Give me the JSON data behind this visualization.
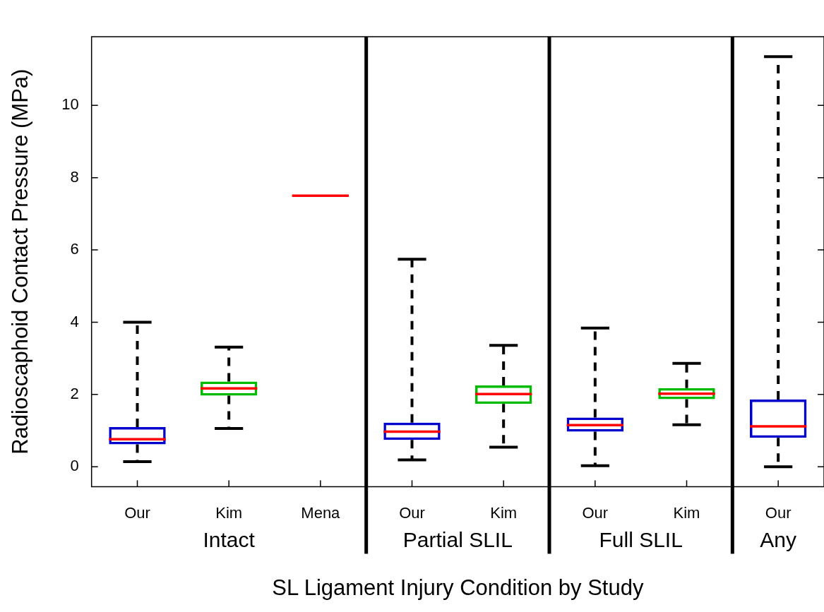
{
  "chart_data": {
    "type": "box",
    "xlabel": "SL Ligament Injury Condition by Study",
    "ylabel": "Radioscaphoid Contact Pressure (MPa)",
    "categories": [
      "Our",
      "Kim",
      "Mena",
      "Our",
      "Kim",
      "Our",
      "Kim",
      "Our"
    ],
    "boxes": [
      {
        "low": 0.14,
        "q1": 0.62,
        "median": 0.76,
        "q3": 1.1,
        "high": 4.0
      },
      {
        "low": 1.06,
        "q1": 1.97,
        "median": 2.17,
        "q3": 2.36,
        "high": 3.31
      },
      {
        "low": 7.5,
        "q1": 7.5,
        "median": 7.5,
        "q3": 7.5,
        "high": 7.5
      },
      {
        "low": 0.19,
        "q1": 0.74,
        "median": 0.97,
        "q3": 1.22,
        "high": 5.74
      },
      {
        "low": 0.54,
        "q1": 1.74,
        "median": 2.01,
        "q3": 2.25,
        "high": 3.36
      },
      {
        "low": 0.03,
        "q1": 0.97,
        "median": 1.15,
        "q3": 1.36,
        "high": 3.84
      },
      {
        "low": 1.16,
        "q1": 1.87,
        "median": 2.02,
        "q3": 2.18,
        "high": 2.86
      },
      {
        "low": 0.0,
        "q1": 0.8,
        "median": 1.12,
        "q3": 1.86,
        "high": 11.35
      }
    ],
    "colors": [
      "#0000cc",
      "#00bb00",
      "#ff0000",
      "#0000cc",
      "#00bb00",
      "#0000cc",
      "#00bb00",
      "#0000cc"
    ],
    "ylim": [
      -0.55,
      11.9
    ],
    "yticks": [
      0,
      2,
      4,
      6,
      8,
      10
    ],
    "grid": false,
    "legend": false,
    "annotations": [
      "Intact",
      "Partial SLIL",
      "Full SLIL",
      "Any"
    ]
  }
}
